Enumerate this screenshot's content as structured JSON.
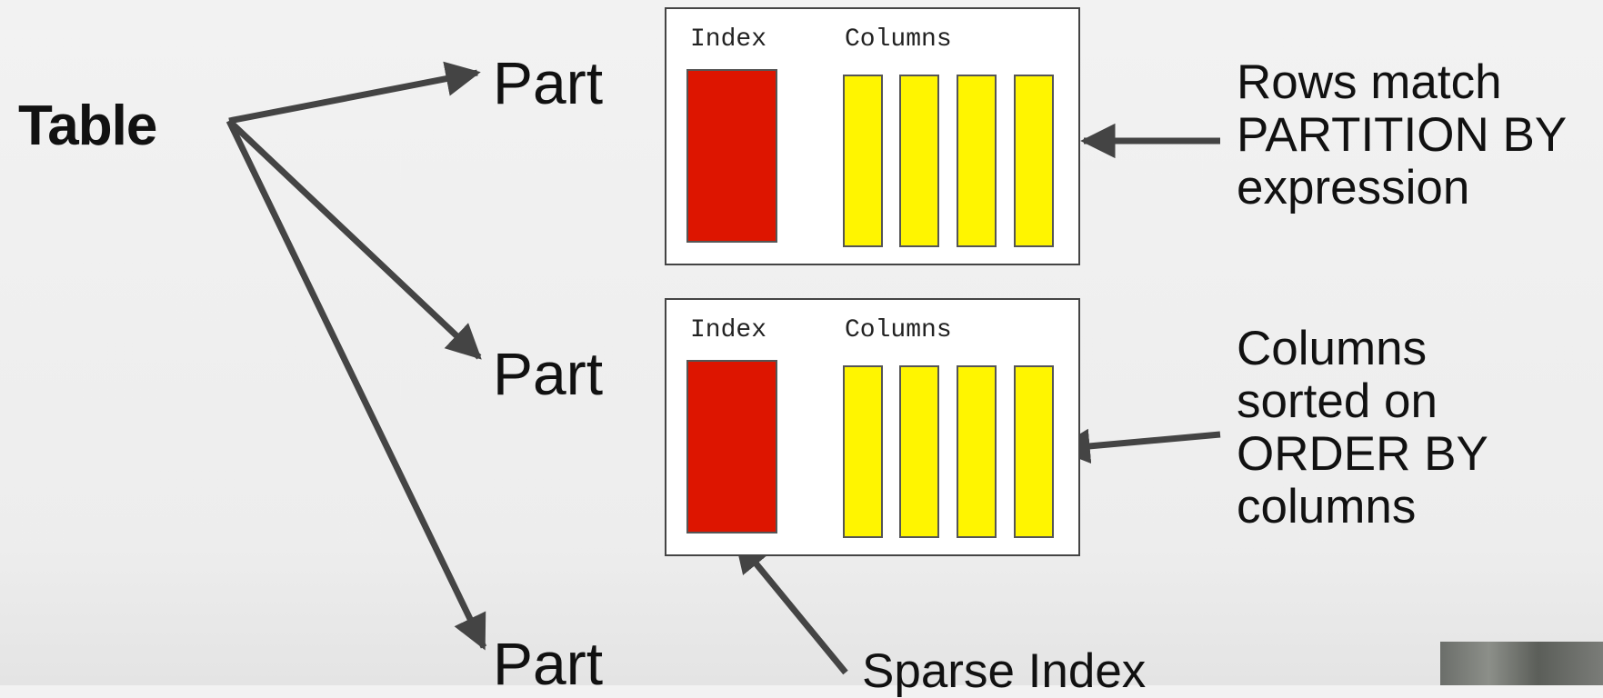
{
  "diagram": {
    "table_label": "Table",
    "parts": [
      {
        "label": "Part"
      },
      {
        "label": "Part"
      },
      {
        "label": "Part"
      }
    ],
    "part_boxes": [
      {
        "index_label": "Index",
        "columns_label": "Columns",
        "column_count": 4
      },
      {
        "index_label": "Index",
        "columns_label": "Columns",
        "column_count": 4
      }
    ],
    "annotations": {
      "partition": [
        "Rows match",
        "PARTITION BY",
        "expression"
      ],
      "order": [
        "Columns",
        "sorted on",
        "ORDER BY",
        "columns"
      ],
      "sparse_index": "Sparse Index"
    },
    "colors": {
      "index": "#dd1500",
      "column": "#fff500",
      "arrow": "#444444",
      "box_border": "#444444",
      "background": "#efefef"
    }
  }
}
